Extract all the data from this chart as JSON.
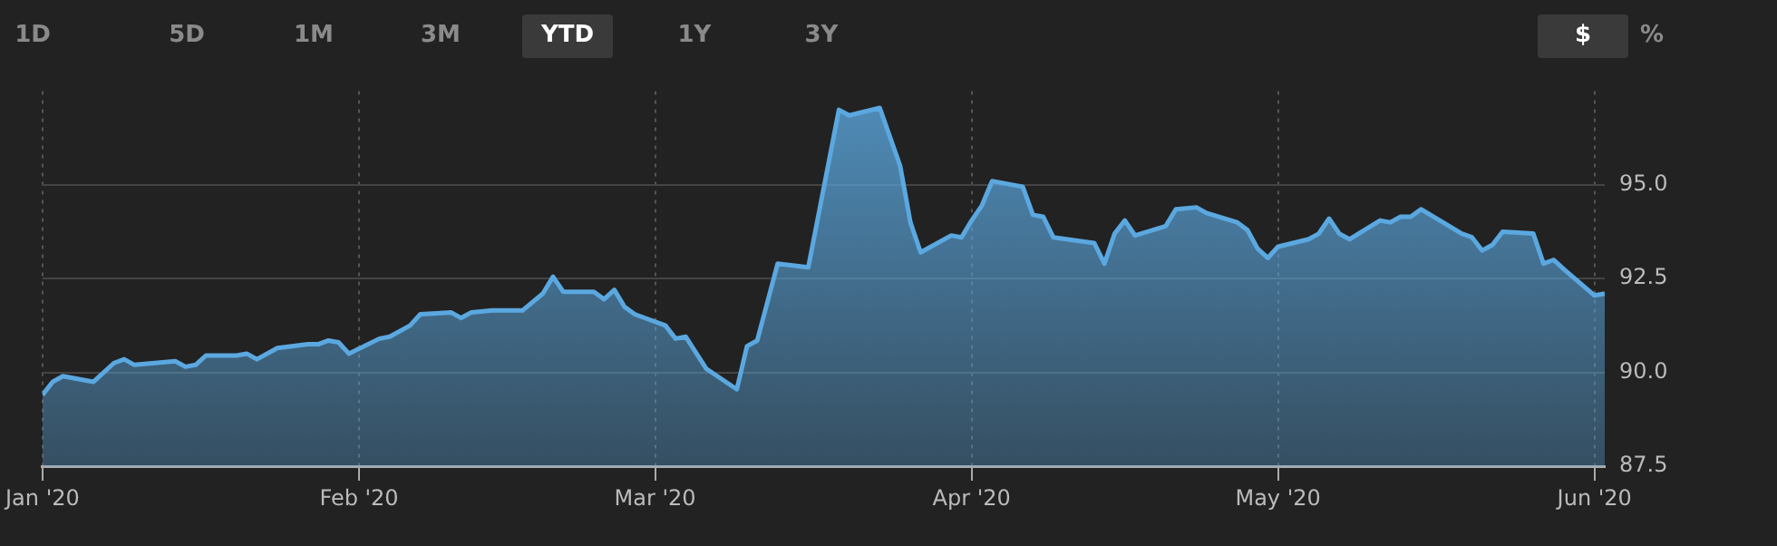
{
  "chart_data": {
    "type": "area",
    "annotations": [
      "1D",
      "5D",
      "1M",
      "3M",
      "YTD",
      "1Y",
      "3Y",
      "$",
      "%"
    ],
    "x": [
      "2020-01-01",
      "2020-01-02",
      "2020-01-03",
      "2020-01-06",
      "2020-01-08",
      "2020-01-09",
      "2020-01-10",
      "2020-01-14",
      "2020-01-15",
      "2020-01-16",
      "2020-01-17",
      "2020-01-20",
      "2020-01-21",
      "2020-01-22",
      "2020-01-24",
      "2020-01-27",
      "2020-01-28",
      "2020-01-29",
      "2020-01-30",
      "2020-01-31",
      "2020-02-03",
      "2020-02-04",
      "2020-02-06",
      "2020-02-07",
      "2020-02-10",
      "2020-02-11",
      "2020-02-12",
      "2020-02-14",
      "2020-02-17",
      "2020-02-19",
      "2020-02-20",
      "2020-02-21",
      "2020-02-24",
      "2020-02-25",
      "2020-02-26",
      "2020-02-27",
      "2020-02-28",
      "2020-03-02",
      "2020-03-03",
      "2020-03-04",
      "2020-03-06",
      "2020-03-09",
      "2020-03-10",
      "2020-03-11",
      "2020-03-13",
      "2020-03-16",
      "2020-03-19",
      "2020-03-20",
      "2020-03-23",
      "2020-03-25",
      "2020-03-26",
      "2020-03-27",
      "2020-03-30",
      "2020-03-31",
      "2020-04-01",
      "2020-04-02",
      "2020-04-03",
      "2020-04-06",
      "2020-04-07",
      "2020-04-08",
      "2020-04-09",
      "2020-04-13",
      "2020-04-14",
      "2020-04-15",
      "2020-04-16",
      "2020-04-17",
      "2020-04-20",
      "2020-04-21",
      "2020-04-23",
      "2020-04-24",
      "2020-04-27",
      "2020-04-28",
      "2020-04-29",
      "2020-04-30",
      "2020-05-01",
      "2020-05-04",
      "2020-05-05",
      "2020-05-06",
      "2020-05-07",
      "2020-05-08",
      "2020-05-11",
      "2020-05-12",
      "2020-05-13",
      "2020-05-14",
      "2020-05-15",
      "2020-05-19",
      "2020-05-20",
      "2020-05-21",
      "2020-05-22",
      "2020-05-23",
      "2020-05-26",
      "2020-05-27",
      "2020-05-28",
      "2020-05-29",
      "2020-06-01",
      "2020-06-02"
    ],
    "series": [
      {
        "color": "#5ba8e0",
        "values": [
          89.4,
          89.75,
          89.9,
          89.75,
          90.25,
          90.35,
          90.2,
          90.3,
          90.15,
          90.2,
          90.45,
          90.45,
          90.5,
          90.35,
          90.65,
          90.75,
          90.75,
          90.85,
          90.8,
          90.5,
          90.9,
          90.95,
          91.25,
          91.55,
          91.6,
          91.45,
          91.6,
          91.65,
          91.65,
          92.1,
          92.55,
          92.15,
          92.15,
          91.95,
          92.2,
          91.75,
          91.55,
          91.25,
          90.9,
          90.95,
          90.1,
          89.55,
          90.7,
          90.85,
          92.9,
          92.8,
          97.0,
          96.85,
          97.05,
          95.5,
          94.0,
          93.2,
          93.65,
          93.6,
          94.05,
          94.45,
          95.1,
          94.95,
          94.2,
          94.15,
          93.6,
          93.45,
          92.9,
          93.7,
          94.05,
          93.65,
          93.9,
          94.35,
          94.4,
          94.25,
          94.0,
          93.8,
          93.3,
          93.05,
          93.35,
          93.55,
          93.7,
          94.1,
          93.7,
          93.55,
          94.05,
          94.0,
          94.15,
          94.15,
          94.35,
          93.7,
          93.6,
          93.25,
          93.4,
          93.75,
          93.7,
          92.9,
          93.0,
          92.75,
          92.05,
          92.1
        ]
      }
    ],
    "xlim": [
      "2020-01-01",
      "2020-06-02"
    ],
    "xticks": [
      {
        "value": "2020-01-01",
        "label": "Jan '20"
      },
      {
        "value": "2020-02-01",
        "label": "Feb '20"
      },
      {
        "value": "2020-03-01",
        "label": "Mar '20"
      },
      {
        "value": "2020-04-01",
        "label": "Apr '20"
      },
      {
        "value": "2020-05-01",
        "label": "May '20"
      },
      {
        "value": "2020-06-01",
        "label": "Jun '20"
      }
    ],
    "ylim": [
      87.5,
      97.5
    ],
    "yticks": [
      87.5,
      {
        "value": 90,
        "label": "90.0"
      },
      92.5,
      {
        "value": 95,
        "label": "95.0"
      }
    ],
    "grid": true,
    "marker": "none"
  }
}
